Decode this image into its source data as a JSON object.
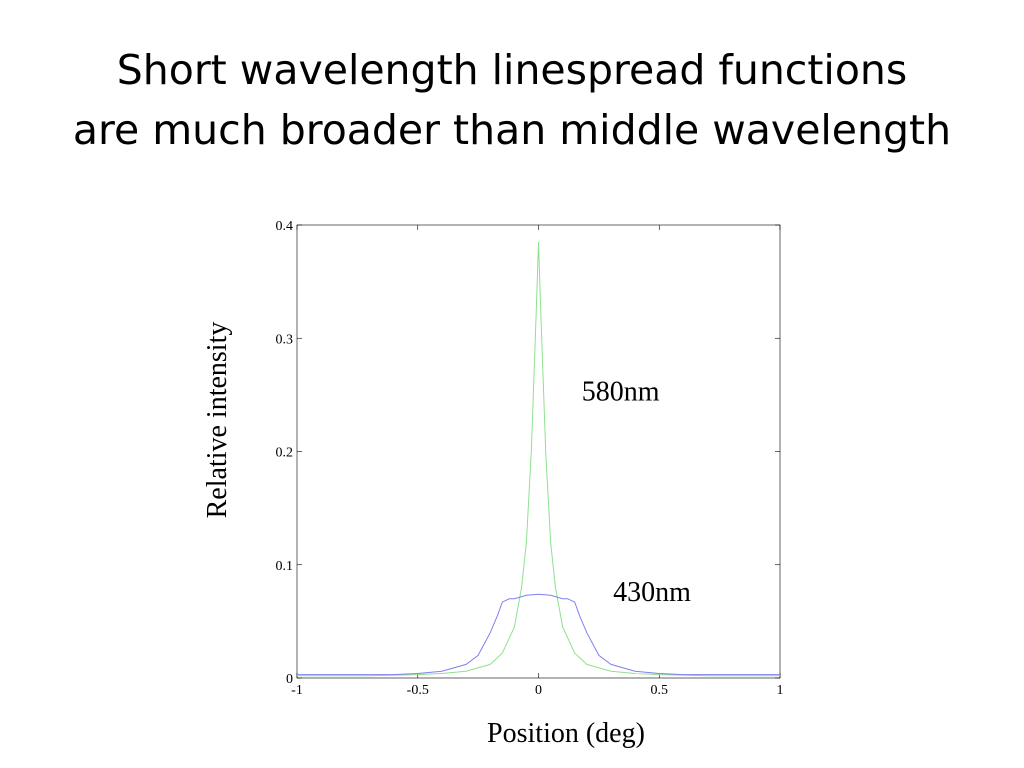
{
  "slide": {
    "title_line1": "Short wavelength linespread functions",
    "title_line2": "are much broader than middle wavelength"
  },
  "chart_data": {
    "type": "line",
    "title": "",
    "xlabel": "Position (deg)",
    "ylabel": "Relative intensity",
    "xlim": [
      -1,
      1
    ],
    "ylim": [
      0,
      0.4
    ],
    "xticks": [
      -1,
      -0.5,
      0,
      0.5,
      1
    ],
    "xtick_labels": [
      "-1",
      "-0.5",
      "0",
      "0.5",
      "1"
    ],
    "yticks": [
      0,
      0.1,
      0.2,
      0.3,
      0.4
    ],
    "ytick_labels": [
      "0",
      "0.1",
      "0.2",
      "0.3",
      "0.4"
    ],
    "grid": false,
    "series": [
      {
        "name": "580nm",
        "color": "#90e090",
        "x": [
          -1,
          -0.7,
          -0.5,
          -0.4,
          -0.3,
          -0.2,
          -0.15,
          -0.1,
          -0.07,
          -0.05,
          -0.03,
          -0.02,
          -0.01,
          0,
          0.01,
          0.02,
          0.03,
          0.05,
          0.07,
          0.1,
          0.15,
          0.2,
          0.3,
          0.4,
          0.5,
          0.7,
          1
        ],
        "y": [
          0.002,
          0.002,
          0.003,
          0.004,
          0.006,
          0.012,
          0.022,
          0.045,
          0.08,
          0.12,
          0.2,
          0.26,
          0.32,
          0.385,
          0.32,
          0.26,
          0.2,
          0.12,
          0.08,
          0.045,
          0.022,
          0.012,
          0.006,
          0.004,
          0.003,
          0.002,
          0.002
        ]
      },
      {
        "name": "430nm",
        "color": "#8080f0",
        "x": [
          -1,
          -0.6,
          -0.5,
          -0.4,
          -0.3,
          -0.25,
          -0.2,
          -0.17,
          -0.15,
          -0.12,
          -0.1,
          -0.05,
          0,
          0.05,
          0.1,
          0.12,
          0.15,
          0.17,
          0.2,
          0.25,
          0.3,
          0.4,
          0.5,
          0.6,
          1
        ],
        "y": [
          0.003,
          0.003,
          0.004,
          0.006,
          0.012,
          0.02,
          0.04,
          0.055,
          0.067,
          0.07,
          0.07,
          0.073,
          0.074,
          0.073,
          0.07,
          0.07,
          0.067,
          0.055,
          0.04,
          0.02,
          0.012,
          0.006,
          0.004,
          0.003,
          0.003
        ]
      }
    ],
    "annotations": [
      {
        "text": "580nm",
        "x": 0.34,
        "y": 0.245,
        "series": "580nm"
      },
      {
        "text": "430nm",
        "x": 0.47,
        "y": 0.068,
        "series": "430nm"
      }
    ]
  }
}
